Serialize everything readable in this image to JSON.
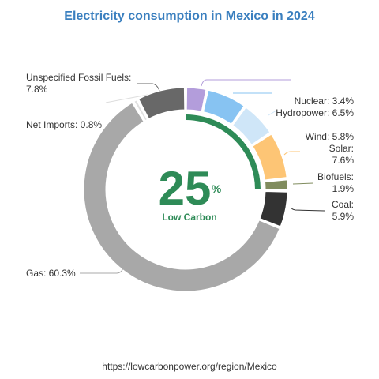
{
  "title": "Electricity consumption in Mexico in 2024",
  "center": {
    "value": "25",
    "unit": "%",
    "label": "Low Carbon"
  },
  "source_text": "https://lowcarbonpower.org/region/Mexico",
  "colors": {
    "title": "#3a7fbf",
    "low_carbon": "#2e8b57",
    "label_text": "#333333"
  },
  "chart_data": {
    "type": "pie",
    "variant": "donut",
    "title": "Electricity consumption in Mexico in 2024",
    "slices": [
      {
        "name": "Nuclear",
        "value": 3.4,
        "color": "#b39ddb"
      },
      {
        "name": "Hydropower",
        "value": 6.5,
        "color": "#87c3f2"
      },
      {
        "name": "Wind",
        "value": 5.8,
        "color": "#cfe6f8"
      },
      {
        "name": "Solar",
        "value": 7.6,
        "color": "#fdc575"
      },
      {
        "name": "Biofuels",
        "value": 1.9,
        "color": "#808c5e"
      },
      {
        "name": "Coal",
        "value": 5.9,
        "color": "#333333"
      },
      {
        "name": "Gas",
        "value": 60.3,
        "color": "#a8a8a8"
      },
      {
        "name": "Net Imports",
        "value": 0.8,
        "color": "#e0e0e0"
      },
      {
        "name": "Unspecified Fossil Fuels",
        "value": 7.8,
        "color": "#686868"
      }
    ],
    "labels": [
      {
        "key": "nuclear",
        "lines": [
          "Nuclear: 3.4%"
        ]
      },
      {
        "key": "hydropower",
        "lines": [
          "Hydropower: 6.5%"
        ]
      },
      {
        "key": "wind",
        "lines": [
          "Wind: 5.8%"
        ]
      },
      {
        "key": "solar",
        "lines": [
          "Solar:",
          "7.6%"
        ]
      },
      {
        "key": "biofuels",
        "lines": [
          "Biofuels:",
          "1.9%"
        ]
      },
      {
        "key": "coal",
        "lines": [
          "Coal:",
          "5.9%"
        ]
      },
      {
        "key": "gas",
        "lines": [
          "Gas: 60.3%"
        ]
      },
      {
        "key": "net-imports",
        "lines": [
          "Net Imports: 0.8%"
        ]
      },
      {
        "key": "unspecified-fossil-fuels",
        "lines": [
          "Unspecified Fossil Fuels:",
          "7.8%"
        ]
      }
    ],
    "low_carbon_share": 25
  }
}
